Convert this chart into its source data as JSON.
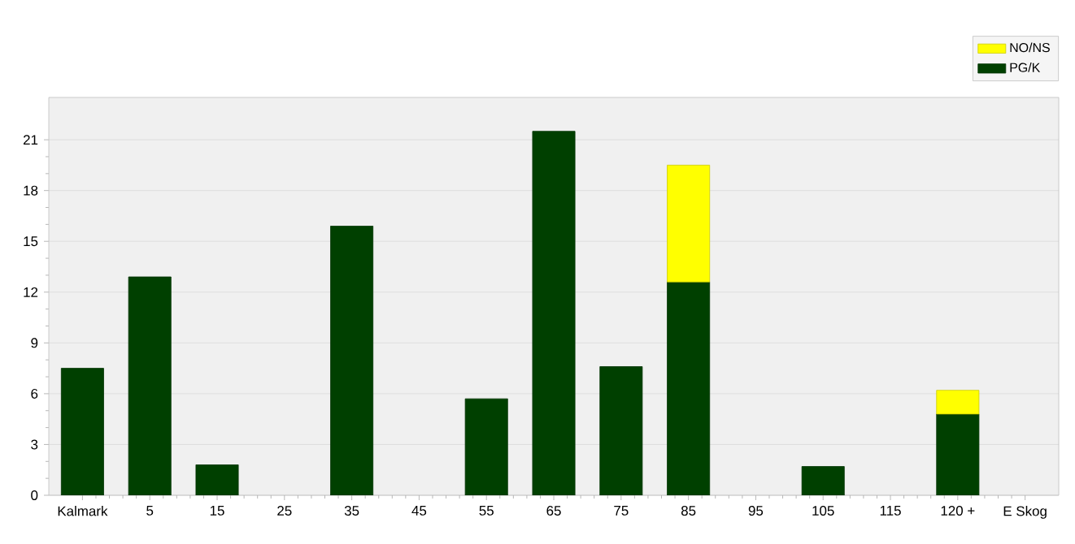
{
  "chart_data": {
    "type": "bar",
    "stacked": true,
    "categories": [
      "Kalmark",
      "5",
      "15",
      "25",
      "35",
      "45",
      "55",
      "65",
      "75",
      "85",
      "95",
      "105",
      "115",
      "120 +",
      "E Skog"
    ],
    "series": [
      {
        "name": "PG/K",
        "color": "#004000",
        "values": [
          7.5,
          12.9,
          1.8,
          null,
          15.9,
          null,
          5.7,
          21.5,
          7.6,
          12.6,
          null,
          1.7,
          null,
          4.8,
          null
        ]
      },
      {
        "name": "NO/NS",
        "color": "#ffff00",
        "values": [
          null,
          null,
          null,
          null,
          null,
          null,
          null,
          null,
          null,
          6.9,
          null,
          null,
          null,
          1.4,
          null
        ]
      }
    ],
    "ylim": [
      0,
      23.5
    ],
    "yticks": [
      0,
      3,
      6,
      9,
      12,
      15,
      18,
      21
    ],
    "grid": "y",
    "legend": "top right"
  }
}
